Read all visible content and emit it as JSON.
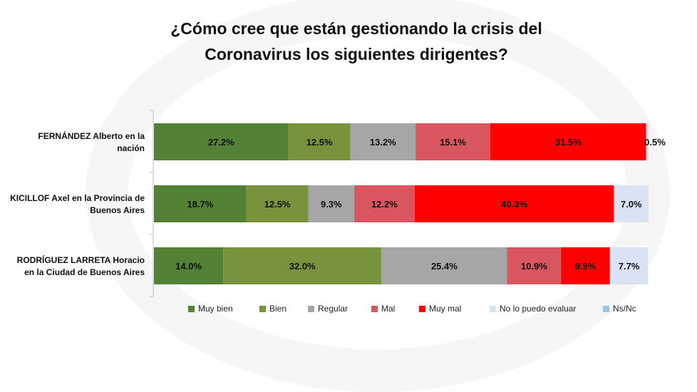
{
  "chart_data": {
    "type": "bar",
    "stacked": true,
    "orientation": "horizontal",
    "title": "¿Cómo cree que están gestionando la crisis del Coronavirus los siguientes dirigentes?",
    "title_lines": [
      "¿Cómo cree que están gestionando la crisis del",
      "Coronavirus los siguientes dirigentes?"
    ],
    "categories": [
      "FERNÁNDEZ Alberto en la nación",
      "KICILLOF Axel en la Provincia de Buenos Aires",
      "RODRÍGUEZ LARRETA Horacio en la Ciudad de Buenos Aires"
    ],
    "category_lines": [
      [
        "FERNÁNDEZ Alberto en la",
        "nación"
      ],
      [
        "KICILLOF Axel en la Provincia de",
        "Buenos Aires"
      ],
      [
        "RODRÍGUEZ LARRETA Horacio",
        "en la Ciudad de Buenos Aires"
      ]
    ],
    "series": [
      {
        "name": "Muy bien",
        "color": "#538135",
        "values": [
          27.2,
          18.7,
          14.0
        ]
      },
      {
        "name": "Bien",
        "color": "#77933c",
        "values": [
          12.5,
          12.5,
          32.0
        ]
      },
      {
        "name": "Regular",
        "color": "#a6a6a6",
        "values": [
          13.2,
          9.3,
          25.4
        ]
      },
      {
        "name": "Mal",
        "color": "#d9565f",
        "values": [
          15.1,
          12.2,
          10.9
        ]
      },
      {
        "name": "Muy mal",
        "color": "#ff0000",
        "values": [
          31.5,
          40.3,
          9.9
        ]
      },
      {
        "name": "No lo puedo evaluar",
        "color": "#dae3f3",
        "values": [
          0.5,
          7.0,
          7.7
        ]
      },
      {
        "name": "Ns/Nc",
        "color": "#9dc3e6",
        "values": [
          0,
          0,
          0
        ]
      }
    ],
    "data_labels": [
      [
        "27.2%",
        "12.5%",
        "13.2%",
        "15.1%",
        "31.5%",
        "0.5%",
        ""
      ],
      [
        "18.7%",
        "12.5%",
        "9.3%",
        "12.2%",
        "40.3%",
        "7.0%",
        ""
      ],
      [
        "14.0%",
        "32.0%",
        "25.4%",
        "10.9%",
        "9.9%",
        "7.7%",
        ""
      ]
    ],
    "xlim": [
      0,
      100
    ],
    "grid": false,
    "legend_position": "bottom"
  }
}
